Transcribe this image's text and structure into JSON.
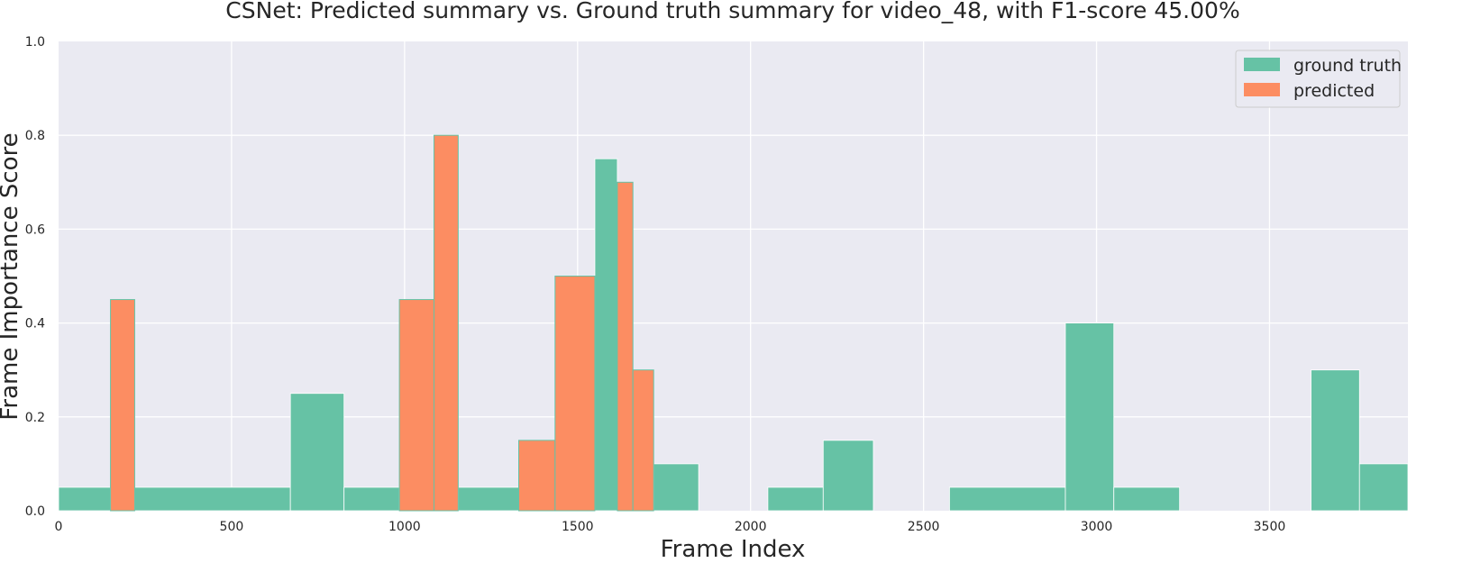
{
  "chart_data": {
    "type": "area",
    "title": "CSNet: Predicted summary vs. Ground truth summary for video_48, with F1-score 45.00%",
    "xlabel": "Frame Index",
    "ylabel": "Frame Importance Score",
    "xlim": [
      0,
      3900
    ],
    "ylim": [
      0,
      1.0
    ],
    "xticks": [
      "0",
      "500",
      "1000",
      "1500",
      "2000",
      "2500",
      "3000",
      "3500"
    ],
    "xtick_values": [
      0,
      500,
      1000,
      1500,
      2000,
      2500,
      3000,
      3500
    ],
    "yticks": [
      "0.0",
      "0.2",
      "0.4",
      "0.6",
      "0.8",
      "1.0"
    ],
    "ytick_values": [
      0,
      0.2,
      0.4,
      0.6,
      0.8,
      1.0
    ],
    "grid": true,
    "legend_placement": "top-right",
    "series": [
      {
        "name": "ground truth",
        "color": "#66c2a5",
        "segments": [
          {
            "start": 0,
            "end": 150,
            "value": 0.05
          },
          {
            "start": 150,
            "end": 220,
            "value": 0.45
          },
          {
            "start": 220,
            "end": 670,
            "value": 0.05
          },
          {
            "start": 670,
            "end": 825,
            "value": 0.25
          },
          {
            "start": 825,
            "end": 985,
            "value": 0.05
          },
          {
            "start": 985,
            "end": 1085,
            "value": 0.45
          },
          {
            "start": 1085,
            "end": 1155,
            "value": 0.8
          },
          {
            "start": 1155,
            "end": 1330,
            "value": 0.05
          },
          {
            "start": 1330,
            "end": 1435,
            "value": 0.15
          },
          {
            "start": 1435,
            "end": 1550,
            "value": 0.5
          },
          {
            "start": 1550,
            "end": 1615,
            "value": 0.75
          },
          {
            "start": 1615,
            "end": 1660,
            "value": 0.7
          },
          {
            "start": 1660,
            "end": 1720,
            "value": 0.3
          },
          {
            "start": 1720,
            "end": 1850,
            "value": 0.1
          },
          {
            "start": 2050,
            "end": 2210,
            "value": 0.05
          },
          {
            "start": 2210,
            "end": 2355,
            "value": 0.15
          },
          {
            "start": 2575,
            "end": 2910,
            "value": 0.05
          },
          {
            "start": 2910,
            "end": 3050,
            "value": 0.4
          },
          {
            "start": 3050,
            "end": 3240,
            "value": 0.05
          },
          {
            "start": 3620,
            "end": 3760,
            "value": 0.3
          },
          {
            "start": 3760,
            "end": 3900,
            "value": 0.1
          }
        ]
      },
      {
        "name": "predicted",
        "color": "#fc8d62",
        "segments": [
          {
            "start": 150,
            "end": 220,
            "value": 0.45
          },
          {
            "start": 985,
            "end": 1085,
            "value": 0.45
          },
          {
            "start": 1085,
            "end": 1155,
            "value": 0.8
          },
          {
            "start": 1330,
            "end": 1435,
            "value": 0.15
          },
          {
            "start": 1435,
            "end": 1550,
            "value": 0.5
          },
          {
            "start": 1615,
            "end": 1660,
            "value": 0.7
          },
          {
            "start": 1660,
            "end": 1720,
            "value": 0.3
          }
        ]
      }
    ]
  }
}
